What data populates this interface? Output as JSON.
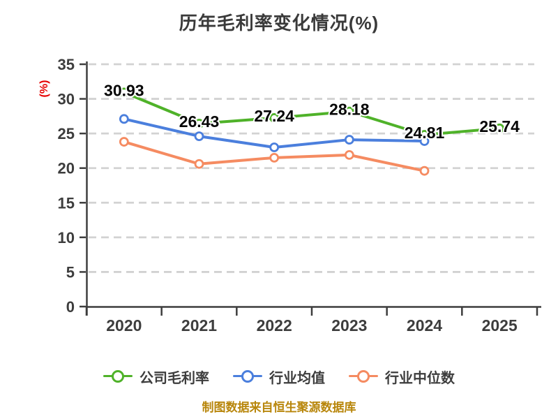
{
  "title": "历年毛利率变化情况(%)",
  "y_axis_label": "(%)",
  "source_note": "制图数据来自恒生聚源数据库",
  "colors": {
    "background": "#ffffff",
    "title": "#3a3a3a",
    "axis": "#3d3d3d",
    "grid": "#d2d2d2",
    "value_label": "#050505",
    "value_label_halo": "#ffffff",
    "y_axis_label": "#e60000",
    "source_note": "#b8860b",
    "marker_fill": "#ffffff",
    "series_company": "#4fb229",
    "series_industry_avg": "#4b7fdd",
    "series_industry_median": "#f58b61"
  },
  "chart_data": {
    "type": "line",
    "title": "历年毛利率变化情况(%)",
    "categories": [
      "2020",
      "2021",
      "2022",
      "2023",
      "2024",
      "2025"
    ],
    "series": [
      {
        "name": "公司毛利率",
        "color": "#4fb229",
        "values": [
          30.93,
          26.43,
          27.24,
          28.18,
          24.81,
          25.74
        ],
        "point_labels": true
      },
      {
        "name": "行业均值",
        "color": "#4b7fdd",
        "values": [
          27.1,
          24.6,
          23.0,
          24.1,
          23.9,
          null
        ],
        "point_labels": false
      },
      {
        "name": "行业中位数",
        "color": "#f58b61",
        "values": [
          23.8,
          20.6,
          21.5,
          21.9,
          19.6,
          null
        ],
        "point_labels": false
      }
    ],
    "ylabel": "(%)",
    "ylim": [
      0,
      35
    ],
    "ytick_step": 5,
    "xtick_labels": [
      "0",
      "5",
      "10",
      "15",
      "20",
      "25",
      "30",
      "35"
    ],
    "grid": "horizontal-dashed",
    "legend_position": "bottom",
    "source_note": "制图数据来自恒生聚源数据库"
  }
}
